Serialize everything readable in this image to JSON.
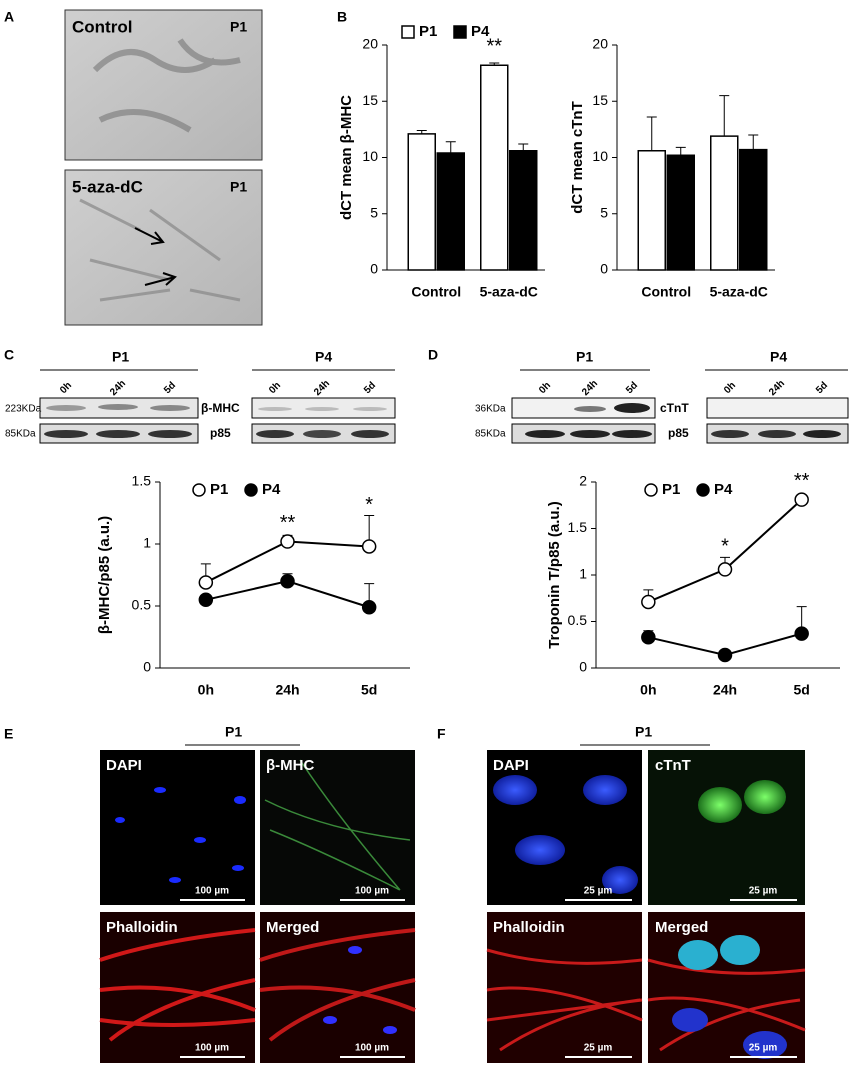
{
  "figure": {
    "panel_labels": [
      "A",
      "B",
      "C",
      "D",
      "E",
      "F"
    ],
    "a": {
      "images": [
        {
          "label": "Control",
          "passage": "P1"
        },
        {
          "label": "5-aza-dC",
          "passage": "P1"
        }
      ]
    },
    "c_blot": {
      "groups": [
        "P1",
        "P4"
      ],
      "lanes": [
        "0h",
        "24h",
        "5d"
      ],
      "sizes": [
        "223KDa",
        "85KDa"
      ],
      "proteins": [
        "β-MHC",
        "p85"
      ]
    },
    "d_blot": {
      "groups": [
        "P1",
        "P4"
      ],
      "lanes": [
        "0h",
        "24h",
        "5d"
      ],
      "sizes": [
        "36KDa",
        "85KDa"
      ],
      "proteins": [
        "cTnT",
        "p85"
      ]
    },
    "e": {
      "group": "P1",
      "images": [
        {
          "label": "DAPI",
          "scale": "100 µm"
        },
        {
          "label": "β-MHC",
          "scale": "100 µm"
        },
        {
          "label": "Phalloidin",
          "scale": "100 µm"
        },
        {
          "label": "Merged",
          "scale": "100 µm"
        }
      ]
    },
    "f": {
      "group": "P1",
      "images": [
        {
          "label": "DAPI",
          "scale": "25 µm"
        },
        {
          "label": "cTnT",
          "scale": "25 µm"
        },
        {
          "label": "Phalloidin",
          "scale": "25 µm"
        },
        {
          "label": "Merged",
          "scale": "25 µm"
        }
      ]
    }
  },
  "chart_data": [
    {
      "type": "bar",
      "ylabel": "dCT mean β-MHC",
      "categories": [
        "Control",
        "5-aza-dC"
      ],
      "legend": "top",
      "ylim": [
        0,
        20
      ],
      "yticks": [
        0,
        5,
        10,
        15,
        20
      ],
      "series": [
        {
          "name": "P1",
          "color": "#ffffff",
          "values": [
            12.1,
            18.2
          ],
          "errors": [
            0.3,
            0.2
          ],
          "annotations": [
            null,
            "**"
          ]
        },
        {
          "name": "P4",
          "color": "#000000",
          "values": [
            10.4,
            10.6
          ],
          "errors": [
            1.0,
            0.6
          ]
        }
      ]
    },
    {
      "type": "bar",
      "ylabel": "dCT mean cTnT",
      "categories": [
        "Control",
        "5-aza-dC"
      ],
      "ylim": [
        0,
        20
      ],
      "yticks": [
        0,
        5,
        10,
        15,
        20
      ],
      "series": [
        {
          "name": "P1",
          "color": "#ffffff",
          "values": [
            10.6,
            11.9
          ],
          "errors": [
            3.0,
            3.6
          ]
        },
        {
          "name": "P4",
          "color": "#000000",
          "values": [
            10.2,
            10.7
          ],
          "errors": [
            0.7,
            1.3
          ]
        }
      ]
    },
    {
      "type": "line",
      "ylabel": "β-MHC/p85 (a.u.)",
      "categories": [
        "0h",
        "24h",
        "5d"
      ],
      "legend": "top",
      "ylim": [
        0,
        1.5
      ],
      "yticks": [
        0,
        0.5,
        1,
        1.5
      ],
      "series": [
        {
          "name": "P1",
          "color": "#ffffff",
          "values": [
            0.69,
            1.02,
            0.98
          ],
          "errors": [
            0.15,
            0.05,
            0.25
          ],
          "annotations": [
            null,
            "**",
            "*"
          ]
        },
        {
          "name": "P4",
          "color": "#000000",
          "values": [
            0.55,
            0.7,
            0.49
          ],
          "errors": [
            0.02,
            0.06,
            0.19
          ]
        }
      ]
    },
    {
      "type": "line",
      "ylabel": "Troponin T/p85 (a.u.)",
      "categories": [
        "0h",
        "24h",
        "5d"
      ],
      "legend": "top",
      "ylim": [
        0,
        2
      ],
      "yticks": [
        0,
        0.5,
        1,
        1.5,
        2
      ],
      "series": [
        {
          "name": "P1",
          "color": "#ffffff",
          "values": [
            0.71,
            1.06,
            1.81
          ],
          "errors": [
            0.13,
            0.13,
            0.03
          ],
          "annotations": [
            null,
            "*",
            "**"
          ]
        },
        {
          "name": "P4",
          "color": "#000000",
          "values": [
            0.33,
            0.14,
            0.37
          ],
          "errors": [
            0.07,
            0,
            0.29
          ]
        }
      ]
    }
  ]
}
